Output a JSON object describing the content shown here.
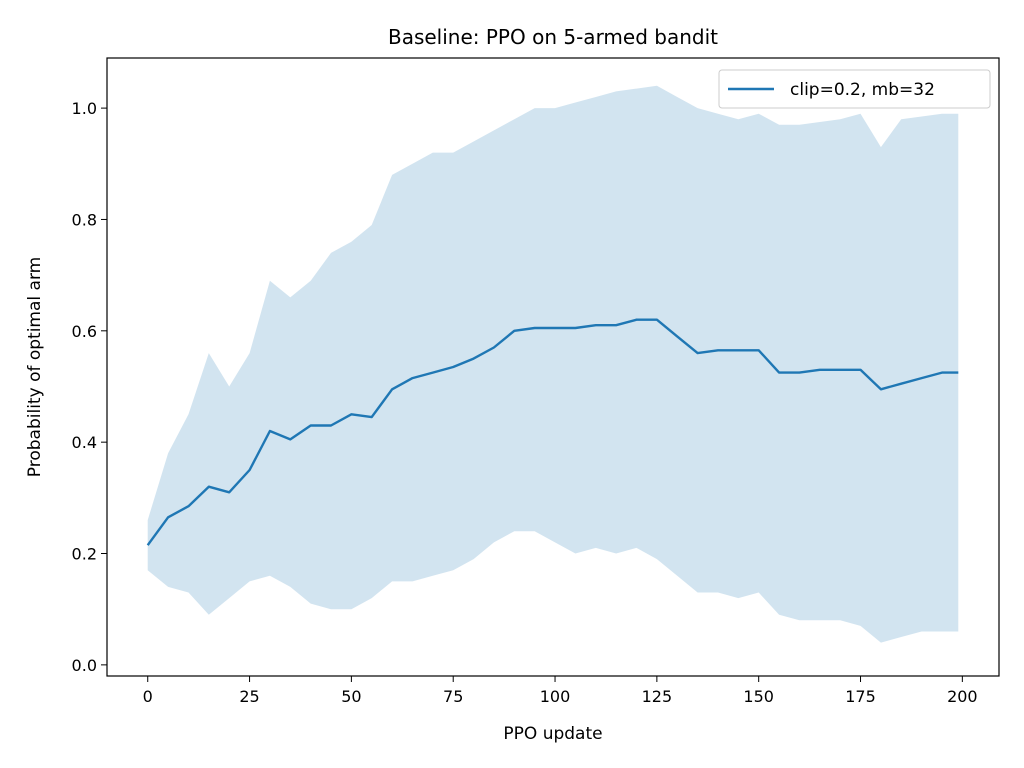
{
  "chart_data": {
    "type": "line",
    "title": "Baseline: PPO on 5-armed bandit",
    "xlabel": "PPO update",
    "ylabel": "Probability of optimal arm",
    "xlim": [
      -10,
      209
    ],
    "ylim": [
      -0.02,
      1.09
    ],
    "xticks": [
      0,
      25,
      50,
      75,
      100,
      125,
      150,
      175,
      200
    ],
    "yticks": [
      0.0,
      0.2,
      0.4,
      0.6,
      0.8,
      1.0
    ],
    "xtick_labels": [
      "0",
      "25",
      "50",
      "75",
      "100",
      "125",
      "150",
      "175",
      "200"
    ],
    "ytick_labels": [
      "0.0",
      "0.2",
      "0.4",
      "0.6",
      "0.8",
      "1.0"
    ],
    "grid": false,
    "legend_position": "top-right",
    "series": [
      {
        "name": "clip=0.2, mb=32",
        "color": "#1f77b4",
        "band_color": "#1f77b4",
        "band_opacity": 0.2,
        "x": [
          0,
          5,
          10,
          15,
          20,
          25,
          30,
          35,
          40,
          45,
          50,
          55,
          60,
          65,
          70,
          75,
          80,
          85,
          90,
          95,
          100,
          105,
          110,
          115,
          120,
          125,
          130,
          135,
          140,
          145,
          150,
          155,
          160,
          165,
          170,
          175,
          180,
          185,
          190,
          195,
          199
        ],
        "mean": [
          0.215,
          0.265,
          0.285,
          0.32,
          0.31,
          0.35,
          0.42,
          0.405,
          0.43,
          0.43,
          0.45,
          0.445,
          0.495,
          0.515,
          0.525,
          0.535,
          0.55,
          0.57,
          0.6,
          0.605,
          0.605,
          0.605,
          0.61,
          0.61,
          0.62,
          0.62,
          0.59,
          0.56,
          0.565,
          0.565,
          0.565,
          0.525,
          0.525,
          0.53,
          0.53,
          0.53,
          0.495,
          0.505,
          0.515,
          0.525,
          0.525
        ],
        "upper": [
          0.26,
          0.38,
          0.45,
          0.56,
          0.5,
          0.56,
          0.69,
          0.66,
          0.69,
          0.74,
          0.76,
          0.79,
          0.88,
          0.9,
          0.92,
          0.92,
          0.94,
          0.96,
          0.98,
          1.0,
          1.0,
          1.01,
          1.02,
          1.03,
          1.035,
          1.04,
          1.02,
          1.0,
          0.99,
          0.98,
          0.99,
          0.97,
          0.97,
          0.975,
          0.98,
          0.99,
          0.93,
          0.98,
          0.985,
          0.99,
          0.99
        ],
        "lower": [
          0.17,
          0.14,
          0.13,
          0.09,
          0.12,
          0.15,
          0.16,
          0.14,
          0.11,
          0.1,
          0.1,
          0.12,
          0.15,
          0.15,
          0.16,
          0.17,
          0.19,
          0.22,
          0.24,
          0.24,
          0.22,
          0.2,
          0.21,
          0.2,
          0.21,
          0.19,
          0.16,
          0.13,
          0.13,
          0.12,
          0.13,
          0.09,
          0.08,
          0.08,
          0.08,
          0.07,
          0.04,
          0.05,
          0.06,
          0.06,
          0.06
        ]
      }
    ]
  }
}
